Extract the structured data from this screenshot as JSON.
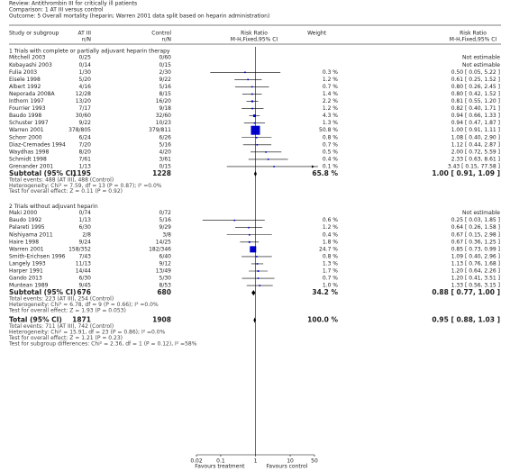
{
  "header": {
    "review": "Review:   Antithrombin III for critically ill patients",
    "comparison": "Comparison:   1 AT III versus control",
    "outcome": "Outcome:   5 Overall mortality (heparin; Warren 2001 data split based on heparin administration)"
  },
  "chart_data": {
    "type": "forest",
    "columns": {
      "study": "Study or subgroup",
      "treatment": "AT III",
      "treatment_unit": "n/N",
      "control": "Control",
      "control_unit": "n/N",
      "plot": "Risk Ratio",
      "plot_method": "M-H,Fixed,95% CI",
      "weight": "Weight",
      "effect": "Risk Ratio",
      "effect_method": "M-H,Fixed,95% CI"
    },
    "color": "#0000cc",
    "log_scale": true,
    "xlim": [
      0.02,
      50
    ],
    "xticks": [
      0.02,
      0.1,
      1,
      10,
      50
    ],
    "ref_line": 1,
    "favours_left": "Favours treatment",
    "favours_right": "Favours control",
    "groups": [
      {
        "title": "1 Trials with complete or partially adjuvant heparin therapy",
        "studies": [
          {
            "study": "Mitchell 2003",
            "treatment": "0/25",
            "control": "0/60",
            "rr_label": "Not estimable"
          },
          {
            "study": "Kobayashi 2003",
            "treatment": "0/14",
            "control": "0/15",
            "rr_label": "Not estimable"
          },
          {
            "study": "Fulia 2003",
            "treatment": "1/30",
            "control": "2/30",
            "weight": 0.3,
            "weight_label": "0.3 %",
            "rr": 0.5,
            "lo": 0.05,
            "hi": 5.22,
            "rr_label": "0.50 [ 0.05, 5.22 ]"
          },
          {
            "study": "Eisele 1998",
            "treatment": "5/20",
            "control": "9/22",
            "weight": 1.2,
            "weight_label": "1.2 %",
            "rr": 0.61,
            "lo": 0.25,
            "hi": 1.52,
            "rr_label": "0.61 [ 0.25, 1.52 ]"
          },
          {
            "study": "Albert 1992",
            "treatment": "4/16",
            "control": "5/16",
            "weight": 0.7,
            "weight_label": "0.7 %",
            "rr": 0.8,
            "lo": 0.26,
            "hi": 2.45,
            "rr_label": "0.80 [ 0.26, 2.45 ]"
          },
          {
            "study": "Neporada 2008A",
            "treatment": "12/28",
            "control": "8/15",
            "weight": 1.4,
            "weight_label": "1.4 %",
            "rr": 0.8,
            "lo": 0.42,
            "hi": 1.52,
            "rr_label": "0.80 [ 0.42, 1.52 ]"
          },
          {
            "study": "Inthorn 1997",
            "treatment": "13/20",
            "control": "16/20",
            "weight": 2.2,
            "weight_label": "2.2 %",
            "rr": 0.81,
            "lo": 0.55,
            "hi": 1.2,
            "rr_label": "0.81 [ 0.55, 1.20 ]"
          },
          {
            "study": "Fourrier 1993",
            "treatment": "7/17",
            "control": "9/18",
            "weight": 1.2,
            "weight_label": "1.2 %",
            "rr": 0.82,
            "lo": 0.4,
            "hi": 1.71,
            "rr_label": "0.82 [ 0.40, 1.71 ]"
          },
          {
            "study": "Baudo 1998",
            "treatment": "30/60",
            "control": "32/60",
            "weight": 4.3,
            "weight_label": "4.3 %",
            "rr": 0.94,
            "lo": 0.66,
            "hi": 1.33,
            "rr_label": "0.94 [ 0.66, 1.33 ]"
          },
          {
            "study": "Schuster 1997",
            "treatment": "9/22",
            "control": "10/23",
            "weight": 1.3,
            "weight_label": "1.3 %",
            "rr": 0.94,
            "lo": 0.47,
            "hi": 1.87,
            "rr_label": "0.94 [ 0.47, 1.87 ]"
          },
          {
            "study": "Warren 2001",
            "treatment": "378/805",
            "control": "379/811",
            "weight": 50.8,
            "weight_label": "50.8 %",
            "rr": 1.0,
            "lo": 0.91,
            "hi": 1.11,
            "rr_label": "1.00 [ 0.91, 1.11 ]"
          },
          {
            "study": "Schorr 2000",
            "treatment": "6/24",
            "control": "6/26",
            "weight": 0.8,
            "weight_label": "0.8 %",
            "rr": 1.08,
            "lo": 0.4,
            "hi": 2.9,
            "rr_label": "1.08 [ 0.40, 2.90 ]"
          },
          {
            "study": "Diaz-Cremades 1994",
            "treatment": "7/20",
            "control": "5/16",
            "weight": 0.7,
            "weight_label": "0.7 %",
            "rr": 1.12,
            "lo": 0.44,
            "hi": 2.87,
            "rr_label": "1.12 [ 0.44, 2.87 ]"
          },
          {
            "study": "Waydhas 1998",
            "treatment": "8/20",
            "control": "4/20",
            "weight": 0.5,
            "weight_label": "0.5 %",
            "rr": 2.0,
            "lo": 0.72,
            "hi": 5.59,
            "rr_label": "2.00 [ 0.72, 5.59 ]"
          },
          {
            "study": "Schmidt 1998",
            "treatment": "7/61",
            "control": "3/61",
            "weight": 0.4,
            "weight_label": "0.4 %",
            "rr": 2.33,
            "lo": 0.63,
            "hi": 8.61,
            "rr_label": "2.33 [ 0.63, 8.61 ]"
          },
          {
            "study": "Grenander 2001",
            "treatment": "1/13",
            "control": "0/15",
            "weight": 0.1,
            "weight_label": "0.1 %",
            "rr": 3.43,
            "lo": 0.15,
            "hi": 77.58,
            "rr_label": "3.43 [ 0.15, 77.58 ]"
          }
        ],
        "subtotal": {
          "study": "Subtotal (95% CI)",
          "treatment": "1195",
          "control": "1228",
          "weight_label": "65.8 %",
          "rr": 1.0,
          "lo": 0.91,
          "hi": 1.09,
          "rr_label": "1.00 [ 0.91, 1.09 ]"
        },
        "notes": [
          "Total events: 488 (AT III), 488 (Control)",
          "Heterogeneity: Chi² = 7.59, df = 13 (P = 0.87); I² =0.0%",
          "Test for overall effect: Z = 0.11 (P = 0.92)"
        ]
      },
      {
        "title": "2 Trials without adjuvant heparin",
        "studies": [
          {
            "study": "Maki 2000",
            "treatment": "0/74",
            "control": "0/72",
            "rr_label": "Not estimable"
          },
          {
            "study": "Baudo 1992",
            "treatment": "1/13",
            "control": "5/16",
            "weight": 0.6,
            "weight_label": "0.6 %",
            "rr": 0.25,
            "lo": 0.03,
            "hi": 1.85,
            "rr_label": "0.25 [ 0.03, 1.85 ]"
          },
          {
            "study": "Palareti 1995",
            "treatment": "6/30",
            "control": "9/29",
            "weight": 1.2,
            "weight_label": "1.2 %",
            "rr": 0.64,
            "lo": 0.26,
            "hi": 1.58,
            "rr_label": "0.64 [ 0.26, 1.58 ]"
          },
          {
            "study": "Nishiyama 2011",
            "treatment": "2/8",
            "control": "3/8",
            "weight": 0.4,
            "weight_label": "0.4 %",
            "rr": 0.67,
            "lo": 0.15,
            "hi": 2.98,
            "rr_label": "0.67 [ 0.15, 2.98 ]"
          },
          {
            "study": "Haire 1998",
            "treatment": "9/24",
            "control": "14/25",
            "weight": 1.8,
            "weight_label": "1.8 %",
            "rr": 0.67,
            "lo": 0.36,
            "hi": 1.25,
            "rr_label": "0.67 [ 0.36, 1.25 ]"
          },
          {
            "study": "Warren 2001",
            "treatment": "158/352",
            "control": "182/346",
            "weight": 24.7,
            "weight_label": "24.7 %",
            "rr": 0.85,
            "lo": 0.73,
            "hi": 0.99,
            "rr_label": "0.85 [ 0.73, 0.99 ]"
          },
          {
            "study": "Smith-Erichsen 1996",
            "treatment": "7/43",
            "control": "6/40",
            "weight": 0.8,
            "weight_label": "0.8 %",
            "rr": 1.09,
            "lo": 0.4,
            "hi": 2.96,
            "rr_label": "1.09 [ 0.40, 2.96 ]"
          },
          {
            "study": "Langely 1993",
            "treatment": "11/13",
            "control": "9/12",
            "weight": 1.3,
            "weight_label": "1.3 %",
            "rr": 1.13,
            "lo": 0.76,
            "hi": 1.68,
            "rr_label": "1.13 [ 0.76, 1.68 ]"
          },
          {
            "study": "Harper 1991",
            "treatment": "14/44",
            "control": "13/49",
            "weight": 1.7,
            "weight_label": "1.7 %",
            "rr": 1.2,
            "lo": 0.64,
            "hi": 2.26,
            "rr_label": "1.20 [ 0.64, 2.26 ]"
          },
          {
            "study": "Gando 2013",
            "treatment": "6/30",
            "control": "5/30",
            "weight": 0.7,
            "weight_label": "0.7 %",
            "rr": 1.2,
            "lo": 0.41,
            "hi": 3.51,
            "rr_label": "1.20 [ 0.41, 3.51 ]"
          },
          {
            "study": "Muntean 1989",
            "treatment": "9/45",
            "control": "8/53",
            "weight": 1.0,
            "weight_label": "1.0 %",
            "rr": 1.33,
            "lo": 0.56,
            "hi": 3.15,
            "rr_label": "1.33 [ 0.56, 3.15 ]"
          }
        ],
        "subtotal": {
          "study": "Subtotal (95% CI)",
          "treatment": "676",
          "control": "680",
          "weight_label": "34.2 %",
          "rr": 0.88,
          "lo": 0.77,
          "hi": 1.0,
          "rr_label": "0.88 [ 0.77, 1.00 ]"
        },
        "notes": [
          "Total events: 223 (AT III), 254 (Control)",
          "Heterogeneity: Chi² = 6.78, df = 9 (P = 0.66); I² =0.0%",
          "Test for overall effect: Z = 1.93 (P = 0.053)"
        ]
      }
    ],
    "total": {
      "study": "Total (95% CI)",
      "treatment": "1871",
      "control": "1908",
      "weight_label": "100.0 %",
      "rr": 0.95,
      "lo": 0.88,
      "hi": 1.03,
      "rr_label": "0.95 [ 0.88, 1.03 ]"
    },
    "total_notes": [
      "Total events: 711 (AT III), 742 (Control)",
      "Heterogeneity: Chi² = 15.91, df = 23 (P = 0.86); I² =0.0%",
      "Test for overall effect: Z = 1.21 (P = 0.23)",
      "Test for subgroup differences: Chi² = 2.36, df = 1 (P = 0.12), I² =58%"
    ]
  }
}
